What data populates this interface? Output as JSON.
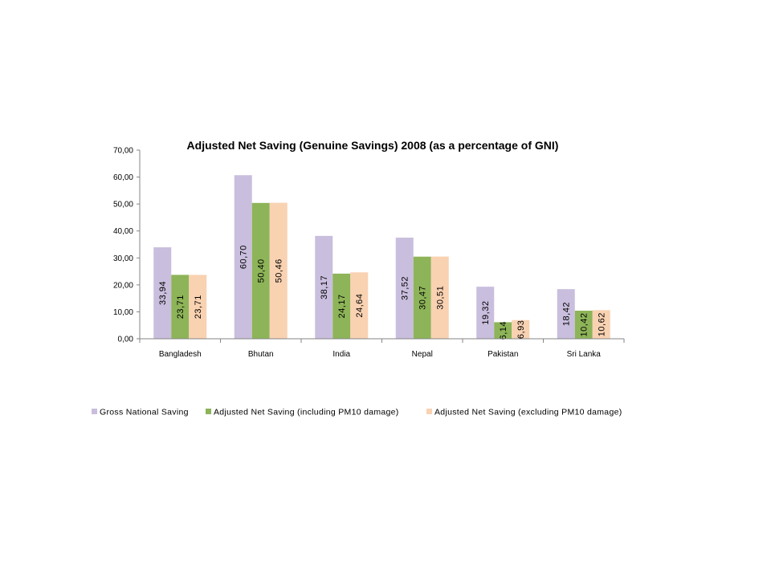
{
  "chart_data": {
    "type": "bar",
    "title": "Adjusted Net Saving (Genuine Savings) 2008 (as a percentage of GNI)",
    "xlabel": "",
    "ylabel": "",
    "ylim": [
      0,
      70
    ],
    "y_ticks": [
      "0,00",
      "10,00",
      "20,00",
      "30,00",
      "40,00",
      "50,00",
      "60,00",
      "70,00"
    ],
    "grid": false,
    "legend_position": "bottom",
    "categories": [
      "Bangladesh",
      "Bhutan",
      "India",
      "Nepal",
      "Pakistan",
      "Sri Lanka"
    ],
    "series": [
      {
        "name": "Gross National Saving",
        "color": "#C9BEDD",
        "values": [
          33.94,
          60.7,
          38.17,
          37.52,
          19.32,
          18.42
        ],
        "labels": [
          "33,94",
          "60,70",
          "38,17",
          "37,52",
          "19,32",
          "18,42"
        ]
      },
      {
        "name": "Adjusted Net Saving (including PM10 damage)",
        "color": "#8DB458",
        "values": [
          23.71,
          50.4,
          24.17,
          30.47,
          6.14,
          10.42
        ],
        "labels": [
          "23,71",
          "50,40",
          "24,17",
          "30,47",
          "6,14",
          "10,42"
        ]
      },
      {
        "name": "Adjusted Net Saving (excluding PM10 damage)",
        "color": "#F9D2B2",
        "values": [
          23.71,
          50.46,
          24.64,
          30.51,
          6.93,
          10.62
        ],
        "labels": [
          "23,71",
          "50,46",
          "24,64",
          "30,51",
          "6,93",
          "10,62"
        ]
      }
    ]
  }
}
